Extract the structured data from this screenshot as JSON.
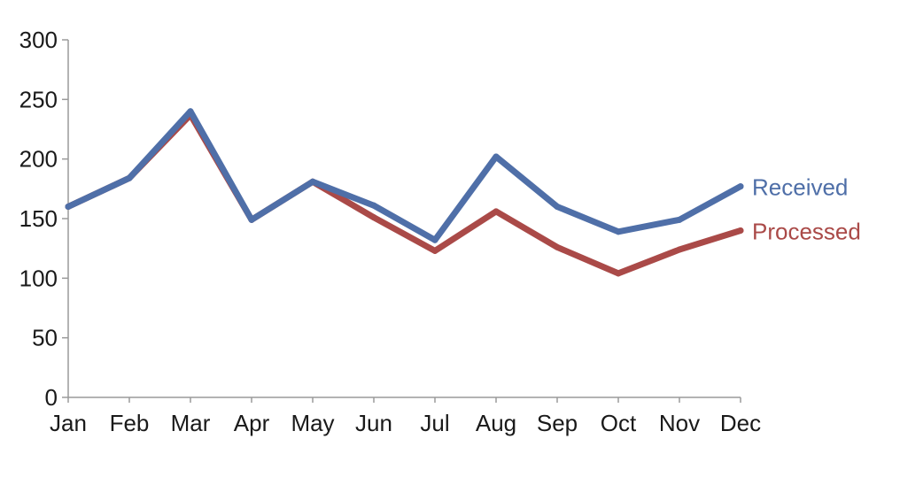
{
  "chart_data": {
    "type": "line",
    "title": "",
    "xlabel": "",
    "ylabel": "",
    "categories": [
      "Jan",
      "Feb",
      "Mar",
      "Apr",
      "May",
      "Jun",
      "Jul",
      "Aug",
      "Sep",
      "Oct",
      "Nov",
      "Dec"
    ],
    "ylim": [
      0,
      300
    ],
    "yticks": [
      "0",
      "50",
      "100",
      "150",
      "200",
      "250",
      "300"
    ],
    "grid": false,
    "legend": "direct labels at right end of lines",
    "series": [
      {
        "name": "Received",
        "color": "#4f6fa8",
        "values": [
          160,
          184,
          240,
          149,
          181,
          161,
          132,
          202,
          160,
          139,
          149,
          177
        ]
      },
      {
        "name": "Processed",
        "color": "#aa4a48",
        "values": [
          160,
          184,
          237,
          149,
          181,
          151,
          123,
          156,
          126,
          104,
          124,
          140
        ]
      }
    ]
  }
}
